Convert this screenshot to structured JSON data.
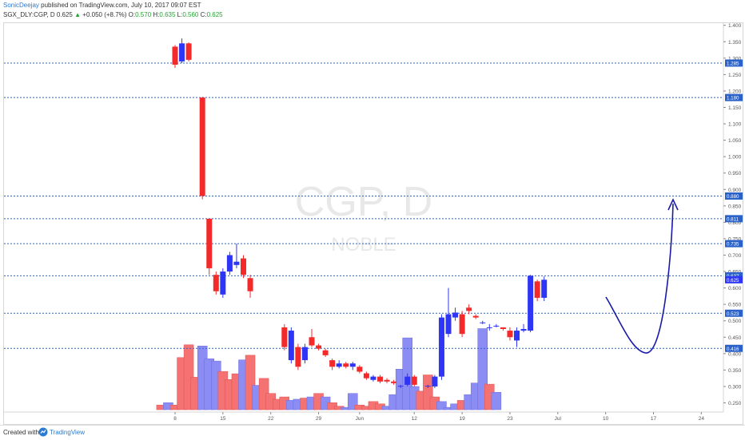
{
  "header": {
    "author": "SonicDeejay",
    "published": " published on TradingView.com, July 10, 2017 09:07 EST",
    "symbol_line": "SGX_DLY:CGP, D",
    "last": "0.625",
    "change_arrow": "▲",
    "change": "+0.050 (+8.7%)",
    "o_label": "O:",
    "o_val": "0.570",
    "h_label": "H:",
    "h_val": "0.635",
    "l_label": "L:",
    "l_val": "0.560",
    "c_label": "C:",
    "c_val": "0.625"
  },
  "footer": {
    "created_with": "Created with",
    "brand": "TradingView"
  },
  "colors": {
    "up": "#2e35f5",
    "down": "#f42a2a",
    "up_vol": "#8c8cf5",
    "down_vol": "#f57272",
    "level": "#2a62c9",
    "drawing": "#1a1aa8"
  },
  "chart_data": {
    "type": "candlestick",
    "watermark": "CGP, D",
    "watermark_sub": "NOBLE",
    "ylim": [
      0.22,
      1.42
    ],
    "y_ticks": [
      "0.250",
      "0.300",
      "0.350",
      "0.400",
      "0.450",
      "0.500",
      "0.550",
      "0.600",
      "0.650",
      "0.700",
      "0.750",
      "0.800",
      "0.850",
      "0.900",
      "0.950",
      "1.000",
      "1.050",
      "1.100",
      "1.150",
      "1.200",
      "1.250",
      "1.300",
      "1.350",
      "1.400"
    ],
    "x_ticks": [
      {
        "day": 8,
        "label": "8"
      },
      {
        "day": 15,
        "label": "15"
      },
      {
        "day": 22,
        "label": "22"
      },
      {
        "day": 29,
        "label": "29"
      },
      {
        "day": 35,
        "label": "Jun"
      },
      {
        "day": 43,
        "label": "12"
      },
      {
        "day": 50,
        "label": "19"
      },
      {
        "day": 57,
        "label": "23"
      },
      {
        "day": 64,
        "label": "Jul"
      },
      {
        "day": 71,
        "label": "10"
      },
      {
        "day": 78,
        "label": "17"
      },
      {
        "day": 85,
        "label": "24"
      }
    ],
    "levels": [
      {
        "price": 1.285,
        "label": "1.285"
      },
      {
        "price": 1.18,
        "label": "1.180"
      },
      {
        "price": 0.88,
        "label": "0.880"
      },
      {
        "price": 0.811,
        "label": "0.811"
      },
      {
        "price": 0.735,
        "label": "0.735"
      },
      {
        "price": 0.637,
        "label": "0.637"
      },
      {
        "price": 0.523,
        "label": "0.523"
      },
      {
        "price": 0.416,
        "label": "0.416"
      }
    ],
    "last_price": {
      "price": 0.625,
      "label": "0.625"
    },
    "candles": [
      {
        "d": 8,
        "o": 1.335,
        "h": 1.34,
        "l": 1.27,
        "c": 1.28
      },
      {
        "d": 9,
        "o": 1.29,
        "h": 1.36,
        "l": 1.285,
        "c": 1.345
      },
      {
        "d": 10,
        "o": 1.345,
        "h": 1.348,
        "l": 1.29,
        "c": 1.295
      },
      {
        "d": 12,
        "o": 1.18,
        "h": 1.182,
        "l": 0.87,
        "c": 0.88
      },
      {
        "d": 13,
        "o": 0.811,
        "h": 0.811,
        "l": 0.64,
        "c": 0.66
      },
      {
        "d": 14,
        "o": 0.64,
        "h": 0.65,
        "l": 0.58,
        "c": 0.59
      },
      {
        "d": 15,
        "o": 0.58,
        "h": 0.66,
        "l": 0.57,
        "c": 0.65
      },
      {
        "d": 16,
        "o": 0.65,
        "h": 0.71,
        "l": 0.64,
        "c": 0.7
      },
      {
        "d": 17,
        "o": 0.67,
        "h": 0.735,
        "l": 0.66,
        "c": 0.68
      },
      {
        "d": 18,
        "o": 0.69,
        "h": 0.7,
        "l": 0.63,
        "c": 0.64
      },
      {
        "d": 19,
        "o": 0.63,
        "h": 0.64,
        "l": 0.57,
        "c": 0.59
      },
      {
        "d": 24,
        "o": 0.48,
        "h": 0.49,
        "l": 0.41,
        "c": 0.42
      },
      {
        "d": 25,
        "o": 0.38,
        "h": 0.48,
        "l": 0.37,
        "c": 0.47
      },
      {
        "d": 26,
        "o": 0.42,
        "h": 0.43,
        "l": 0.35,
        "c": 0.36
      },
      {
        "d": 27,
        "o": 0.38,
        "h": 0.43,
        "l": 0.37,
        "c": 0.42
      },
      {
        "d": 28,
        "o": 0.45,
        "h": 0.475,
        "l": 0.42,
        "c": 0.425
      },
      {
        "d": 29,
        "o": 0.425,
        "h": 0.43,
        "l": 0.41,
        "c": 0.415
      },
      {
        "d": 30,
        "o": 0.41,
        "h": 0.415,
        "l": 0.39,
        "c": 0.395
      },
      {
        "d": 31,
        "o": 0.38,
        "h": 0.385,
        "l": 0.35,
        "c": 0.36
      },
      {
        "d": 32,
        "o": 0.36,
        "h": 0.38,
        "l": 0.355,
        "c": 0.37
      },
      {
        "d": 33,
        "o": 0.37,
        "h": 0.375,
        "l": 0.355,
        "c": 0.36
      },
      {
        "d": 34,
        "o": 0.36,
        "h": 0.375,
        "l": 0.35,
        "c": 0.37
      },
      {
        "d": 35,
        "o": 0.36,
        "h": 0.365,
        "l": 0.34,
        "c": 0.345
      },
      {
        "d": 36,
        "o": 0.34,
        "h": 0.345,
        "l": 0.32,
        "c": 0.325
      },
      {
        "d": 37,
        "o": 0.32,
        "h": 0.335,
        "l": 0.315,
        "c": 0.33
      },
      {
        "d": 38,
        "o": 0.33,
        "h": 0.335,
        "l": 0.31,
        "c": 0.315
      },
      {
        "d": 39,
        "o": 0.32,
        "h": 0.325,
        "l": 0.31,
        "c": 0.315
      },
      {
        "d": 40,
        "o": 0.315,
        "h": 0.32,
        "l": 0.305,
        "c": 0.31
      },
      {
        "d": 41,
        "o": 0.3,
        "h": 0.305,
        "l": 0.295,
        "c": 0.302
      },
      {
        "d": 42,
        "o": 0.305,
        "h": 0.34,
        "l": 0.3,
        "c": 0.33
      },
      {
        "d": 43,
        "o": 0.33,
        "h": 0.335,
        "l": 0.3,
        "c": 0.305
      },
      {
        "d": 45,
        "o": 0.3,
        "h": 0.305,
        "l": 0.295,
        "c": 0.302
      },
      {
        "d": 46,
        "o": 0.3,
        "h": 0.335,
        "l": 0.295,
        "c": 0.33
      },
      {
        "d": 47,
        "o": 0.33,
        "h": 0.52,
        "l": 0.32,
        "c": 0.51
      },
      {
        "d": 48,
        "o": 0.46,
        "h": 0.6,
        "l": 0.45,
        "c": 0.52
      },
      {
        "d": 49,
        "o": 0.51,
        "h": 0.54,
        "l": 0.5,
        "c": 0.525
      },
      {
        "d": 50,
        "o": 0.52,
        "h": 0.53,
        "l": 0.45,
        "c": 0.46
      },
      {
        "d": 51,
        "o": 0.54,
        "h": 0.55,
        "l": 0.52,
        "c": 0.53
      },
      {
        "d": 52,
        "o": 0.515,
        "h": 0.52,
        "l": 0.505,
        "c": 0.51
      },
      {
        "d": 53,
        "o": 0.495,
        "h": 0.5,
        "l": 0.49,
        "c": 0.495
      },
      {
        "d": 54,
        "o": 0.48,
        "h": 0.49,
        "l": 0.47,
        "c": 0.48
      },
      {
        "d": 55,
        "o": 0.485,
        "h": 0.49,
        "l": 0.48,
        "c": 0.485
      },
      {
        "d": 56,
        "o": 0.48,
        "h": 0.48,
        "l": 0.47,
        "c": 0.475
      },
      {
        "d": 57,
        "o": 0.47,
        "h": 0.48,
        "l": 0.44,
        "c": 0.45
      },
      {
        "d": 58,
        "o": 0.44,
        "h": 0.48,
        "l": 0.42,
        "c": 0.47
      },
      {
        "d": 59,
        "o": 0.47,
        "h": 0.49,
        "l": 0.465,
        "c": 0.475
      },
      {
        "d": 60,
        "o": 0.47,
        "h": 0.64,
        "l": 0.465,
        "c": 0.637
      },
      {
        "d": 61,
        "o": 0.62,
        "h": 0.625,
        "l": 0.56,
        "c": 0.57
      },
      {
        "d": 62,
        "o": 0.57,
        "h": 0.635,
        "l": 0.56,
        "c": 0.625
      }
    ],
    "volume": [
      {
        "d": 6,
        "v": 0.04,
        "up": false
      },
      {
        "d": 7,
        "v": 0.06,
        "up": true
      },
      {
        "d": 8,
        "v": 0.04,
        "up": false
      },
      {
        "d": 9,
        "v": 0.45,
        "up": false
      },
      {
        "d": 10,
        "v": 0.56,
        "up": false
      },
      {
        "d": 11,
        "v": 0.28,
        "up": false
      },
      {
        "d": 12,
        "v": 0.55,
        "up": true
      },
      {
        "d": 13,
        "v": 0.44,
        "up": true
      },
      {
        "d": 14,
        "v": 0.42,
        "up": true
      },
      {
        "d": 15,
        "v": 0.33,
        "up": false
      },
      {
        "d": 16,
        "v": 0.26,
        "up": false
      },
      {
        "d": 17,
        "v": 0.31,
        "up": false
      },
      {
        "d": 18,
        "v": 0.43,
        "up": true
      },
      {
        "d": 19,
        "v": 0.47,
        "up": false
      },
      {
        "d": 20,
        "v": 0.21,
        "up": true
      },
      {
        "d": 21,
        "v": 0.27,
        "up": false
      },
      {
        "d": 22,
        "v": 0.14,
        "up": false
      },
      {
        "d": 23,
        "v": 0.09,
        "up": false
      },
      {
        "d": 24,
        "v": 0.11,
        "up": false
      },
      {
        "d": 25,
        "v": 0.08,
        "up": true
      },
      {
        "d": 26,
        "v": 0.09,
        "up": true
      },
      {
        "d": 27,
        "v": 0.1,
        "up": false
      },
      {
        "d": 28,
        "v": 0.11,
        "up": true
      },
      {
        "d": 29,
        "v": 0.14,
        "up": false
      },
      {
        "d": 30,
        "v": 0.11,
        "up": true
      },
      {
        "d": 31,
        "v": 0.06,
        "up": false
      },
      {
        "d": 32,
        "v": 0.03,
        "up": false
      },
      {
        "d": 33,
        "v": 0.02,
        "up": true
      },
      {
        "d": 34,
        "v": 0.14,
        "up": true
      },
      {
        "d": 35,
        "v": 0.04,
        "up": false
      },
      {
        "d": 36,
        "v": 0.03,
        "up": false
      },
      {
        "d": 37,
        "v": 0.07,
        "up": false
      },
      {
        "d": 38,
        "v": 0.05,
        "up": false
      },
      {
        "d": 39,
        "v": 0.03,
        "up": true
      },
      {
        "d": 40,
        "v": 0.13,
        "up": true
      },
      {
        "d": 41,
        "v": 0.35,
        "up": true
      },
      {
        "d": 42,
        "v": 0.62,
        "up": true
      },
      {
        "d": 43,
        "v": 0.2,
        "up": true
      },
      {
        "d": 44,
        "v": 0.16,
        "up": false
      },
      {
        "d": 45,
        "v": 0.3,
        "up": false
      },
      {
        "d": 46,
        "v": 0.11,
        "up": false
      },
      {
        "d": 47,
        "v": 0.07,
        "up": true
      },
      {
        "d": 48,
        "v": 0.02,
        "up": true
      },
      {
        "d": 49,
        "v": 0.05,
        "up": true
      },
      {
        "d": 50,
        "v": 0.08,
        "up": false
      },
      {
        "d": 51,
        "v": 0.13,
        "up": true
      },
      {
        "d": 52,
        "v": 0.23,
        "up": true
      },
      {
        "d": 53,
        "v": 0.7,
        "up": true
      },
      {
        "d": 54,
        "v": 0.22,
        "up": false
      },
      {
        "d": 55,
        "v": 0.15,
        "up": true
      }
    ]
  }
}
